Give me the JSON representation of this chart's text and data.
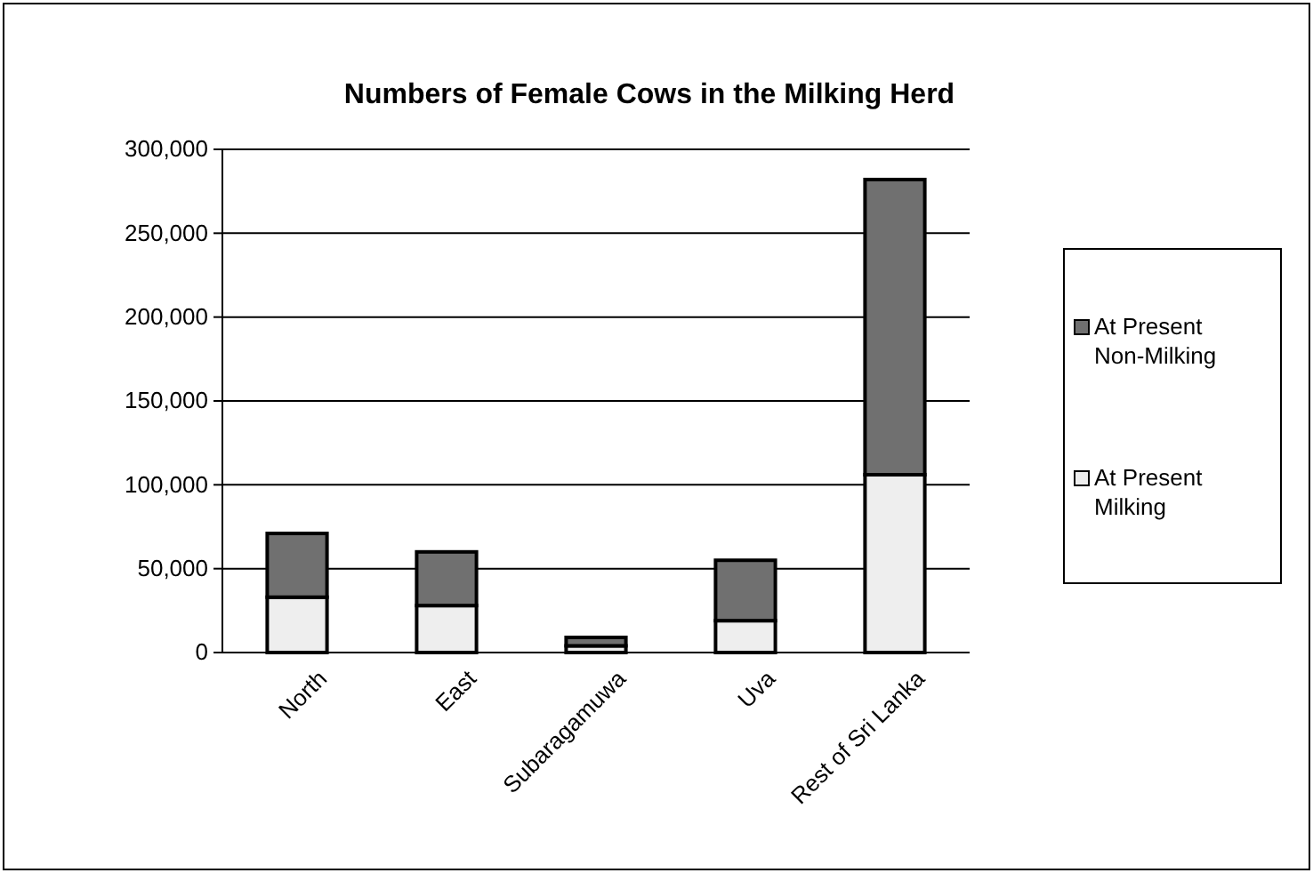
{
  "chart_data": {
    "type": "bar",
    "title": "Numbers of Female Cows in the Milking Herd",
    "categories": [
      "North",
      "East",
      "Subaragamuwa",
      "Uva",
      "Rest of Sri Lanka"
    ],
    "stacked": true,
    "series": [
      {
        "name": "At Present Milking",
        "color": "#eeeeee",
        "values": [
          33000,
          28000,
          4000,
          19000,
          106000
        ]
      },
      {
        "name": "At Present Non-Milking",
        "color": "#707070",
        "values": [
          38000,
          32000,
          5000,
          36000,
          176000
        ]
      }
    ],
    "ylim": [
      0,
      300000
    ],
    "yticks": [
      {
        "value": 0,
        "label": "0"
      },
      {
        "value": 50000,
        "label": "50,000"
      },
      {
        "value": 100000,
        "label": "100,000"
      },
      {
        "value": 150000,
        "label": "150,000"
      },
      {
        "value": 200000,
        "label": "200,000"
      },
      {
        "value": 250000,
        "label": "250,000"
      },
      {
        "value": 300000,
        "label": "300,000"
      }
    ],
    "grid": "y",
    "legend": "right"
  }
}
